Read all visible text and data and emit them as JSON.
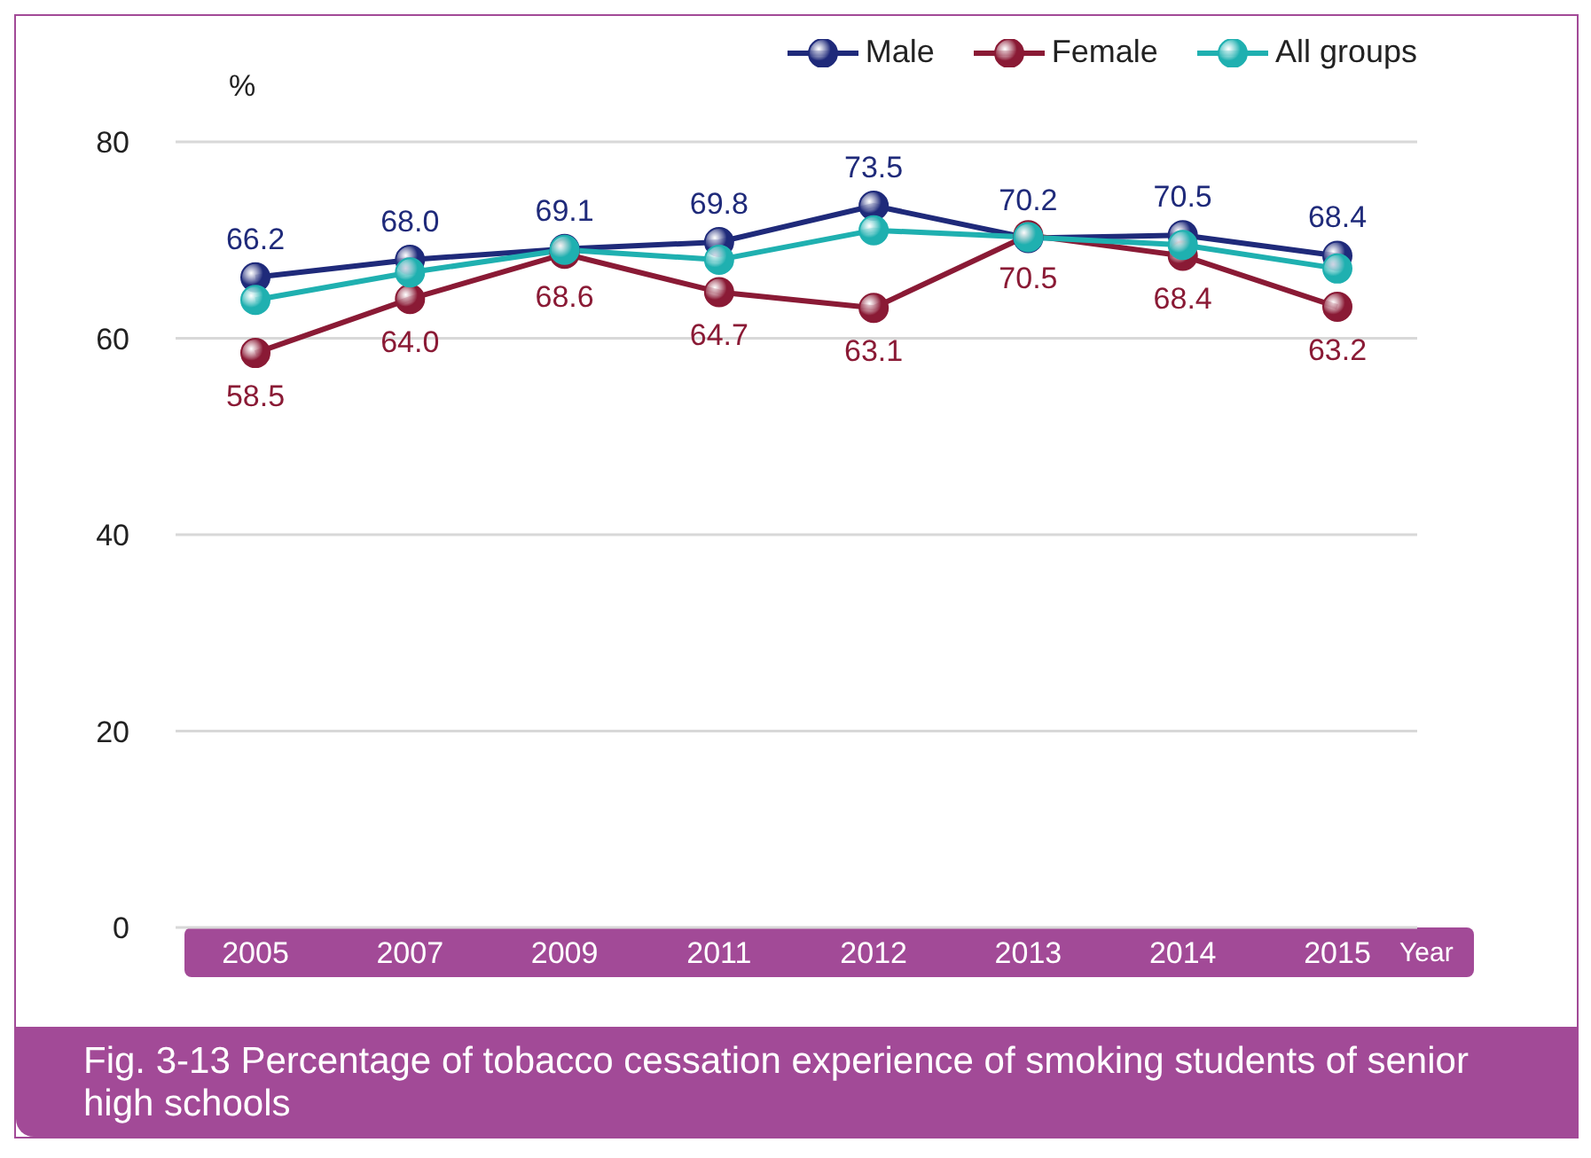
{
  "chart_data": {
    "type": "line",
    "title": "Fig. 3-13  Percentage of tobacco cessation experience of smoking students of senior high schools",
    "xlabel": "Year",
    "ylabel": "%",
    "categories": [
      "2005",
      "2007",
      "2009",
      "2011",
      "2012",
      "2013",
      "2014",
      "2015"
    ],
    "series": [
      {
        "name": "Male",
        "color": "#1f2a7a",
        "values": [
          66.2,
          68.0,
          69.1,
          69.8,
          73.5,
          70.2,
          70.5,
          68.4
        ],
        "value_labels": [
          "66.2",
          "68.0",
          "69.1",
          "69.8",
          "73.5",
          "70.2",
          "70.5",
          "68.4"
        ]
      },
      {
        "name": "Female",
        "color": "#8a1a35",
        "values": [
          58.5,
          64.0,
          68.6,
          64.7,
          63.1,
          70.5,
          68.4,
          63.2
        ],
        "value_labels": [
          "58.5",
          "64.0",
          "68.6",
          "64.7",
          "63.1",
          "70.5",
          "68.4",
          "63.2"
        ]
      },
      {
        "name": "All groups",
        "color": "#1fb0b0",
        "values": [
          63.9,
          66.7,
          69.0,
          68.0,
          71.0,
          70.3,
          69.5,
          67.1
        ]
      }
    ],
    "ylim": [
      0,
      80
    ],
    "yticks": [
      0,
      20,
      40,
      60,
      80
    ],
    "grid": "y",
    "legend": "top right",
    "marker": "circle",
    "line_style": "solid"
  }
}
